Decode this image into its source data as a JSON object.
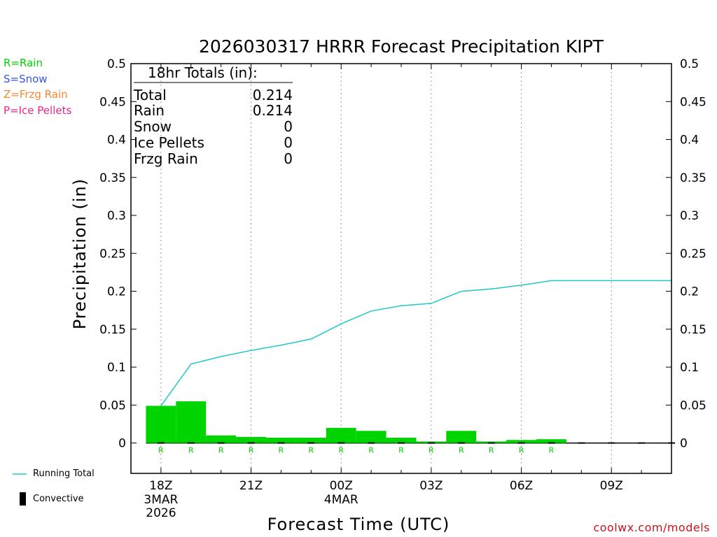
{
  "legend_top": [
    {
      "text": "R=Rain",
      "color": "#00d400"
    },
    {
      "text": "S=Snow",
      "color": "#3355ee"
    },
    {
      "text": "Z=Frzg Rain",
      "color": "#f08a33"
    },
    {
      "text": "P=Ice Pellets",
      "color": "#e8248a"
    }
  ],
  "legend_bottom": {
    "running_total": "Running Total",
    "convective": "Convective"
  },
  "totals_box": {
    "title": "18hr Totals (in):",
    "rows": [
      {
        "label": "Total",
        "value": "0.214"
      },
      {
        "label": "Rain",
        "value": "0.214"
      },
      {
        "label": "Snow",
        "value": "0"
      },
      {
        "label": "Ice Pellets",
        "value": "0"
      },
      {
        "label": "Frzg Rain",
        "value": "0"
      }
    ]
  },
  "credit": "coolwx.com/models",
  "colors": {
    "rain": "#00d400",
    "running_total": "#1ec8c8",
    "credit": "#c8141e",
    "grid": "#999999"
  },
  "chart_data": {
    "type": "bar",
    "title": "2026030317 HRRR Forecast Precipitation KIPT",
    "xlabel": "Forecast Time (UTC)",
    "ylabel": "Precipitation (in)",
    "ylim": [
      -0.04,
      0.5
    ],
    "y_ticks": [
      "0",
      "0.05",
      "0.1",
      "0.15",
      "0.2",
      "0.25",
      "0.3",
      "0.35",
      "0.4",
      "0.45",
      "0.5"
    ],
    "y_tick_values": [
      0,
      0.05,
      0.1,
      0.15,
      0.2,
      0.25,
      0.3,
      0.35,
      0.4,
      0.45,
      0.5
    ],
    "xlim_hours": [
      17.0,
      35.0
    ],
    "x_ticks": [
      {
        "hour": 18,
        "label": "18Z",
        "sub": [
          "3MAR",
          "2026"
        ]
      },
      {
        "hour": 21,
        "label": "21Z",
        "sub": []
      },
      {
        "hour": 24,
        "label": "00Z",
        "sub": [
          "4MAR"
        ]
      },
      {
        "hour": 27,
        "label": "03Z",
        "sub": []
      },
      {
        "hour": 30,
        "label": "06Z",
        "sub": []
      },
      {
        "hour": 33,
        "label": "09Z",
        "sub": []
      }
    ],
    "bars": [
      {
        "start": 17.5,
        "type": "R",
        "value": 0.049
      },
      {
        "start": 18.5,
        "type": "R",
        "value": 0.055
      },
      {
        "start": 19.5,
        "type": "R",
        "value": 0.01
      },
      {
        "start": 20.5,
        "type": "R",
        "value": 0.008
      },
      {
        "start": 21.5,
        "type": "R",
        "value": 0.007
      },
      {
        "start": 22.5,
        "type": "R",
        "value": 0.007
      },
      {
        "start": 23.5,
        "type": "R",
        "value": 0.02
      },
      {
        "start": 24.5,
        "type": "R",
        "value": 0.016
      },
      {
        "start": 25.5,
        "type": "R",
        "value": 0.007
      },
      {
        "start": 26.5,
        "type": "R",
        "value": 0.002
      },
      {
        "start": 27.5,
        "type": "R",
        "value": 0.016
      },
      {
        "start": 28.5,
        "type": "R",
        "value": 0.002
      },
      {
        "start": 29.5,
        "type": "R",
        "value": 0.004
      },
      {
        "start": 30.5,
        "type": "R",
        "value": 0.005
      },
      {
        "start": 31.5,
        "type": "",
        "value": 0
      },
      {
        "start": 32.5,
        "type": "",
        "value": 0
      },
      {
        "start": 33.5,
        "type": "",
        "value": 0
      },
      {
        "start": 34.5,
        "type": "",
        "value": 0
      }
    ],
    "running_total": [
      {
        "hour": 18.0,
        "value": 0.049
      },
      {
        "hour": 19.0,
        "value": 0.104
      },
      {
        "hour": 20.0,
        "value": 0.114
      },
      {
        "hour": 21.0,
        "value": 0.122
      },
      {
        "hour": 22.0,
        "value": 0.129
      },
      {
        "hour": 23.0,
        "value": 0.137
      },
      {
        "hour": 24.0,
        "value": 0.157
      },
      {
        "hour": 25.0,
        "value": 0.174
      },
      {
        "hour": 26.0,
        "value": 0.181
      },
      {
        "hour": 27.0,
        "value": 0.184
      },
      {
        "hour": 28.0,
        "value": 0.2
      },
      {
        "hour": 29.0,
        "value": 0.203
      },
      {
        "hour": 30.0,
        "value": 0.208
      },
      {
        "hour": 31.0,
        "value": 0.214
      },
      {
        "hour": 35.0,
        "value": 0.214
      }
    ]
  }
}
